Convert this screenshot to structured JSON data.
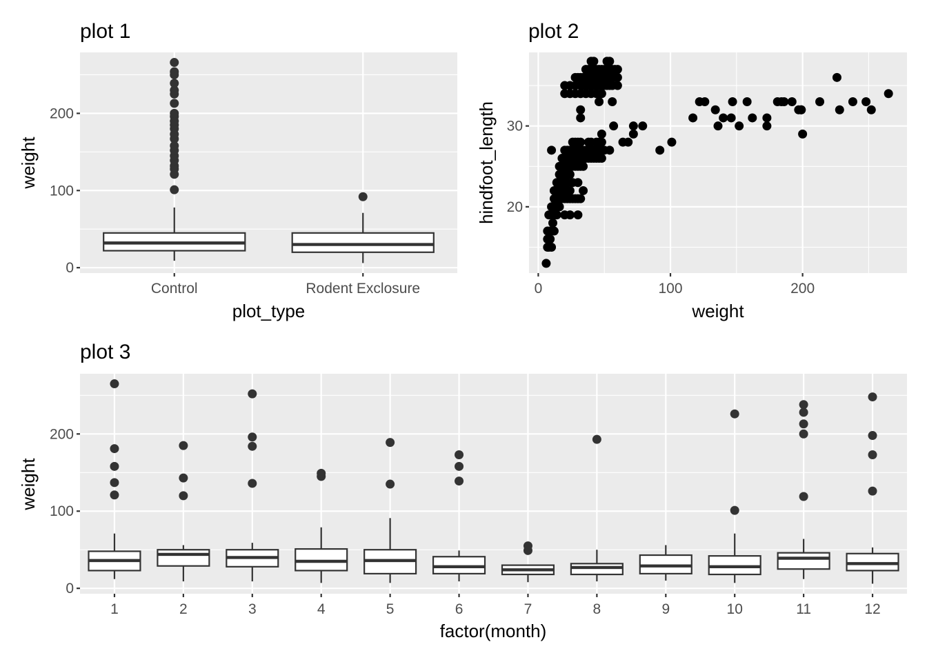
{
  "chart_data": [
    {
      "id": "plot1",
      "type": "boxplot",
      "title": "plot 1",
      "xlabel": "plot_type",
      "ylabel": "weight",
      "categories": [
        "Control",
        "Rodent Exclosure"
      ],
      "ylim": [
        -7,
        279
      ],
      "yticks": [
        0,
        100,
        200
      ],
      "grid": true,
      "boxes": [
        {
          "category": "Control",
          "whisker_low": 9,
          "q1": 22,
          "median": 32,
          "q3": 45,
          "whisker_high": 78,
          "outliers": [
            101,
            121,
            128,
            132,
            139,
            145,
            152,
            158,
            167,
            173,
            180,
            185,
            190,
            196,
            200,
            213,
            225,
            230,
            239,
            250,
            254,
            266
          ]
        },
        {
          "category": "Rodent Exclosure",
          "whisker_low": 6,
          "q1": 20,
          "median": 30,
          "q3": 45,
          "whisker_high": 71,
          "outliers": [
            92
          ]
        }
      ]
    },
    {
      "id": "plot2",
      "type": "scatter",
      "title": "plot 2",
      "xlabel": "weight",
      "ylabel": "hindfoot_length",
      "xlim": [
        -7,
        279
      ],
      "ylim": [
        11.8,
        39.1
      ],
      "xticks": [
        0,
        100,
        200
      ],
      "yticks": [
        20,
        30
      ],
      "grid": true,
      "points": [
        [
          6,
          13
        ],
        [
          7,
          15
        ],
        [
          8,
          15
        ],
        [
          10,
          15
        ],
        [
          7,
          16
        ],
        [
          8,
          16
        ],
        [
          9,
          16
        ],
        [
          7,
          17
        ],
        [
          9,
          17
        ],
        [
          10,
          17
        ],
        [
          12,
          17
        ],
        [
          11,
          18
        ],
        [
          8,
          19
        ],
        [
          10,
          19
        ],
        [
          12,
          19
        ],
        [
          14,
          19
        ],
        [
          10,
          20
        ],
        [
          12,
          20
        ],
        [
          14,
          20
        ],
        [
          16,
          20
        ],
        [
          12,
          21
        ],
        [
          14,
          21
        ],
        [
          16,
          21
        ],
        [
          18,
          21
        ],
        [
          20,
          21
        ],
        [
          22,
          21
        ],
        [
          24,
          21
        ],
        [
          26,
          21
        ],
        [
          28,
          21
        ],
        [
          30,
          21
        ],
        [
          32,
          21
        ],
        [
          12,
          22
        ],
        [
          14,
          22
        ],
        [
          16,
          22
        ],
        [
          18,
          22
        ],
        [
          20,
          22
        ],
        [
          22,
          22
        ],
        [
          24,
          22
        ],
        [
          14,
          23
        ],
        [
          16,
          23
        ],
        [
          18,
          23
        ],
        [
          20,
          23
        ],
        [
          22,
          23
        ],
        [
          26,
          23
        ],
        [
          30,
          23
        ],
        [
          16,
          24
        ],
        [
          18,
          24
        ],
        [
          20,
          24
        ],
        [
          22,
          24
        ],
        [
          24,
          24
        ],
        [
          16,
          25
        ],
        [
          18,
          25
        ],
        [
          20,
          25
        ],
        [
          22,
          25
        ],
        [
          24,
          25
        ],
        [
          26,
          25
        ],
        [
          28,
          25
        ],
        [
          30,
          25
        ],
        [
          32,
          25
        ],
        [
          34,
          25
        ],
        [
          18,
          26
        ],
        [
          20,
          26
        ],
        [
          22,
          26
        ],
        [
          24,
          26
        ],
        [
          26,
          26
        ],
        [
          28,
          26
        ],
        [
          30,
          26
        ],
        [
          32,
          26
        ],
        [
          34,
          26
        ],
        [
          36,
          26
        ],
        [
          38,
          26
        ],
        [
          40,
          26
        ],
        [
          42,
          26
        ],
        [
          44,
          26
        ],
        [
          46,
          26
        ],
        [
          48,
          26
        ],
        [
          10,
          27
        ],
        [
          20,
          27
        ],
        [
          22,
          27
        ],
        [
          24,
          27
        ],
        [
          26,
          27
        ],
        [
          28,
          27
        ],
        [
          30,
          27
        ],
        [
          32,
          27
        ],
        [
          34,
          27
        ],
        [
          36,
          27
        ],
        [
          38,
          27
        ],
        [
          40,
          27
        ],
        [
          42,
          27
        ],
        [
          44,
          27
        ],
        [
          46,
          27
        ],
        [
          48,
          27
        ],
        [
          50,
          27
        ],
        [
          54,
          27
        ],
        [
          26,
          28
        ],
        [
          28,
          28
        ],
        [
          30,
          28
        ],
        [
          32,
          28
        ],
        [
          38,
          28
        ],
        [
          40,
          28
        ],
        [
          44,
          28
        ],
        [
          46,
          28
        ],
        [
          48,
          28
        ],
        [
          68,
          28
        ],
        [
          48,
          29
        ],
        [
          34,
          22
        ],
        [
          30,
          19
        ],
        [
          24,
          19
        ],
        [
          20,
          19
        ],
        [
          20,
          34
        ],
        [
          24,
          34
        ],
        [
          28,
          34
        ],
        [
          32,
          34
        ],
        [
          36,
          34
        ],
        [
          40,
          34
        ],
        [
          44,
          34
        ],
        [
          48,
          34
        ],
        [
          20,
          35
        ],
        [
          24,
          35
        ],
        [
          28,
          35
        ],
        [
          32,
          35
        ],
        [
          34,
          35
        ],
        [
          36,
          35
        ],
        [
          38,
          35
        ],
        [
          40,
          35
        ],
        [
          42,
          35
        ],
        [
          44,
          35
        ],
        [
          46,
          35
        ],
        [
          48,
          35
        ],
        [
          50,
          35
        ],
        [
          52,
          35
        ],
        [
          54,
          35
        ],
        [
          56,
          35
        ],
        [
          60,
          35
        ],
        [
          28,
          36
        ],
        [
          30,
          36
        ],
        [
          32,
          36
        ],
        [
          34,
          36
        ],
        [
          36,
          36
        ],
        [
          38,
          36
        ],
        [
          40,
          36
        ],
        [
          42,
          36
        ],
        [
          44,
          36
        ],
        [
          46,
          36
        ],
        [
          48,
          36
        ],
        [
          50,
          36
        ],
        [
          52,
          36
        ],
        [
          54,
          36
        ],
        [
          56,
          36
        ],
        [
          58,
          36
        ],
        [
          60,
          36
        ],
        [
          36,
          37
        ],
        [
          38,
          37
        ],
        [
          40,
          37
        ],
        [
          42,
          37
        ],
        [
          44,
          37
        ],
        [
          46,
          37
        ],
        [
          48,
          37
        ],
        [
          50,
          37
        ],
        [
          52,
          37
        ],
        [
          54,
          37
        ],
        [
          56,
          37
        ],
        [
          58,
          37
        ],
        [
          60,
          37
        ],
        [
          40,
          38
        ],
        [
          42,
          38
        ],
        [
          52,
          38
        ],
        [
          54,
          38
        ],
        [
          46,
          33
        ],
        [
          56,
          33
        ],
        [
          32,
          32
        ],
        [
          32,
          31
        ],
        [
          57,
          30
        ],
        [
          72,
          30
        ],
        [
          79,
          30
        ],
        [
          72,
          29
        ],
        [
          64,
          28
        ],
        [
          92,
          27
        ],
        [
          101,
          28
        ],
        [
          117,
          31
        ],
        [
          122,
          33
        ],
        [
          126,
          33
        ],
        [
          134,
          32
        ],
        [
          136,
          30
        ],
        [
          140,
          31
        ],
        [
          146,
          31
        ],
        [
          147,
          33
        ],
        [
          152,
          30
        ],
        [
          158,
          33
        ],
        [
          162,
          31
        ],
        [
          173,
          30
        ],
        [
          173,
          31
        ],
        [
          181,
          33
        ],
        [
          184,
          33
        ],
        [
          186,
          33
        ],
        [
          192,
          33
        ],
        [
          199,
          32
        ],
        [
          199,
          32
        ],
        [
          197,
          32
        ],
        [
          200,
          29
        ],
        [
          213,
          33
        ],
        [
          226,
          36
        ],
        [
          228,
          32
        ],
        [
          238,
          33
        ],
        [
          248,
          33
        ],
        [
          252,
          32
        ],
        [
          265,
          34
        ]
      ]
    },
    {
      "id": "plot3",
      "type": "boxplot",
      "title": "plot 3",
      "xlabel": "factor(month)",
      "ylabel": "weight",
      "categories": [
        "1",
        "2",
        "3",
        "4",
        "5",
        "6",
        "7",
        "8",
        "9",
        "10",
        "11",
        "12"
      ],
      "ylim": [
        -7,
        278
      ],
      "yticks": [
        0,
        100,
        200
      ],
      "grid": true,
      "boxes": [
        {
          "category": "1",
          "whisker_low": 12,
          "q1": 23,
          "median": 36,
          "q3": 48,
          "whisker_high": 71,
          "outliers": [
            121,
            137,
            158,
            181,
            265
          ]
        },
        {
          "category": "2",
          "whisker_low": 9,
          "q1": 29,
          "median": 44,
          "q3": 50,
          "whisker_high": 56,
          "outliers": [
            120,
            143,
            185
          ]
        },
        {
          "category": "3",
          "whisker_low": 9,
          "q1": 28,
          "median": 40,
          "q3": 50,
          "whisker_high": 59,
          "outliers": [
            136,
            184,
            196,
            252
          ]
        },
        {
          "category": "4",
          "whisker_low": 7,
          "q1": 23,
          "median": 35,
          "q3": 51,
          "whisker_high": 79,
          "outliers": [
            145,
            149
          ]
        },
        {
          "category": "5",
          "whisker_low": 7,
          "q1": 19,
          "median": 36,
          "q3": 50,
          "whisker_high": 91,
          "outliers": [
            135,
            189
          ]
        },
        {
          "category": "6",
          "whisker_low": 9,
          "q1": 19,
          "median": 28,
          "q3": 41,
          "whisker_high": 49,
          "outliers": [
            139,
            158,
            173
          ]
        },
        {
          "category": "7",
          "whisker_low": 8,
          "q1": 18,
          "median": 24,
          "q3": 30,
          "whisker_high": 30,
          "outliers": [
            49,
            55
          ]
        },
        {
          "category": "8",
          "whisker_low": 9,
          "q1": 18,
          "median": 27,
          "q3": 32,
          "whisker_high": 50,
          "outliers": [
            193
          ]
        },
        {
          "category": "9",
          "whisker_low": 10,
          "q1": 19,
          "median": 29,
          "q3": 43,
          "whisker_high": 56,
          "outliers": []
        },
        {
          "category": "10",
          "whisker_low": 7,
          "q1": 18,
          "median": 28,
          "q3": 42,
          "whisker_high": 71,
          "outliers": [
            101,
            226
          ]
        },
        {
          "category": "11",
          "whisker_low": 12,
          "q1": 25,
          "median": 39,
          "q3": 46,
          "whisker_high": 64,
          "outliers": [
            119,
            200,
            213,
            228,
            238
          ]
        },
        {
          "category": "12",
          "whisker_low": 6,
          "q1": 23,
          "median": 32,
          "q3": 45,
          "whisker_high": 53,
          "outliers": [
            126,
            173,
            198,
            248
          ]
        }
      ]
    }
  ]
}
